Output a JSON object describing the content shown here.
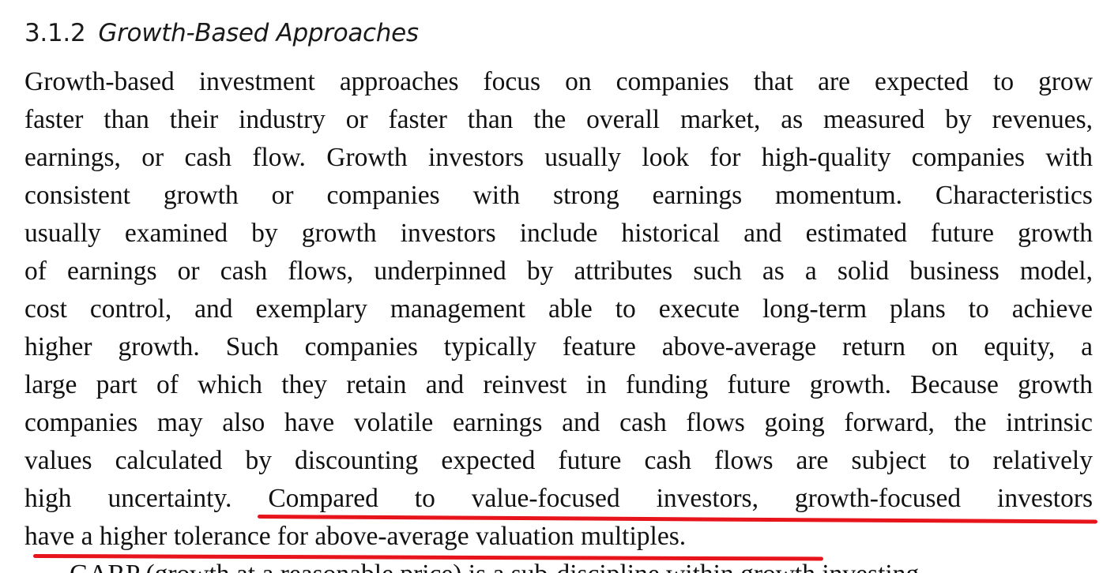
{
  "section": {
    "number": "3.1.2",
    "title": "Growth-Based Approaches"
  },
  "paragraph": {
    "lines": [
      "Growth-based investment approaches focus on companies that are expected to grow",
      "faster than their industry or faster than the overall market, as measured by revenues,",
      "earnings, or cash flow. Growth investors usually look for high-quality companies with",
      "consistent growth or companies with strong earnings momentum. Characteristics",
      "usually examined by growth investors include historical and estimated future growth",
      "of earnings or cash flows, underpinned by attributes such as a solid business model,",
      "cost control, and exemplary management able to execute long-term plans to achieve",
      "higher growth. Such companies typically feature above-average return on equity, a",
      "large part of which they retain and reinvest in funding future growth. Because growth",
      "companies may also have volatile earnings and cash flows going forward, the intrinsic",
      "values calculated by discounting expected future cash flows are subject to relatively"
    ],
    "line12_plain": "high uncertainty. ",
    "line12_highlight": "Compared to value-focused investors, growth-focused investors",
    "line13_highlight": "have a higher tolerance for above-average valuation multiples."
  },
  "next_paragraph_partial": "GARP (growth at a reasonable price) is a sub-discipline within growth investing",
  "annotation": {
    "underline_color": "#e8141c"
  }
}
